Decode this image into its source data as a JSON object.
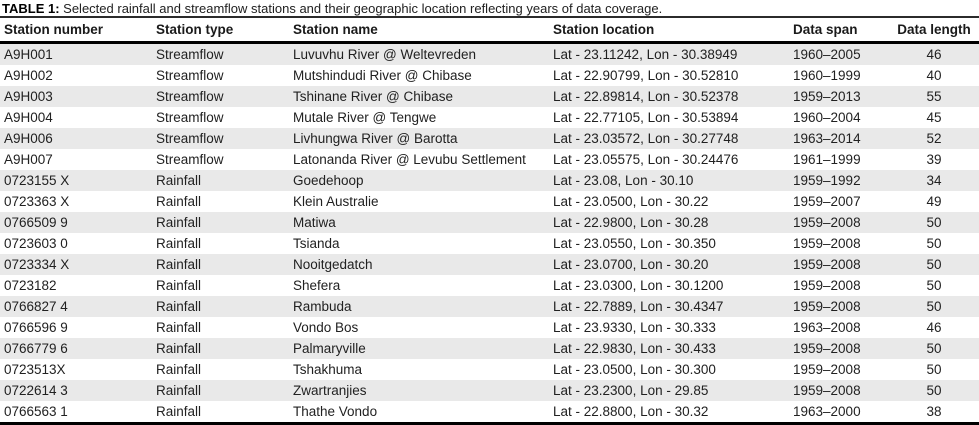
{
  "caption": {
    "label": "TABLE 1:",
    "text": " Selected rainfall and streamflow stations and their geographic location reflecting years of data coverage."
  },
  "colors": {
    "stripe": "#e9e9e9",
    "text": "#212121",
    "rule": "#000000"
  },
  "table": {
    "columns": [
      {
        "key": "station-number",
        "label": "Station number"
      },
      {
        "key": "station-type",
        "label": "Station type"
      },
      {
        "key": "station-name",
        "label": "Station name"
      },
      {
        "key": "station-location",
        "label": "Station location"
      },
      {
        "key": "data-span",
        "label": "Data span"
      },
      {
        "key": "data-length",
        "label": "Data length"
      }
    ],
    "rows": [
      [
        "A9H001",
        "Streamflow",
        "Luvuvhu River @ Weltevreden",
        "Lat - 23.11242, Lon - 30.38949",
        "1960–2005",
        "46"
      ],
      [
        "A9H002",
        "Streamflow",
        "Mutshindudi River @ Chibase",
        "Lat - 22.90799, Lon - 30.52810",
        "1960–1999",
        "40"
      ],
      [
        "A9H003",
        "Streamflow",
        "Tshinane River @ Chibase",
        "Lat - 22.89814, Lon - 30.52378",
        "1959–2013",
        "55"
      ],
      [
        "A9H004",
        "Streamflow",
        "Mutale River @ Tengwe",
        "Lat - 22.77105, Lon - 30.53894",
        "1960–2004",
        "45"
      ],
      [
        "A9H006",
        "Streamflow",
        "Livhungwa River @ Barotta",
        "Lat - 23.03572, Lon - 30.27748",
        "1963–2014",
        "52"
      ],
      [
        "A9H007",
        "Streamflow",
        "Latonanda River @ Levubu Settlement",
        "Lat - 23.05575, Lon - 30.24476",
        "1961–1999",
        "39"
      ],
      [
        "0723155 X",
        "Rainfall",
        "Goedehoop",
        "Lat - 23.08, Lon - 30.10",
        "1959–1992",
        "34"
      ],
      [
        "0723363 X",
        "Rainfall",
        "Klein Australie",
        "Lat - 23.0500, Lon - 30.22",
        "1959–2007",
        "49"
      ],
      [
        "0766509 9",
        "Rainfall",
        "Matiwa",
        "Lat - 22.9800, Lon - 30.28",
        "1959–2008",
        "50"
      ],
      [
        "0723603 0",
        "Rainfall",
        "Tsianda",
        "Lat - 23.0550, Lon - 30.350",
        "1959–2008",
        "50"
      ],
      [
        "0723334 X",
        "Rainfall",
        "Nooitgedatch",
        "Lat - 23.0700, Lon - 30.20",
        "1959–2008",
        "50"
      ],
      [
        "0723182",
        "Rainfall",
        "Shefera",
        "Lat - 23.0300, Lon - 30.1200",
        "1959–2008",
        "50"
      ],
      [
        "0766827 4",
        "Rainfall",
        "Rambuda",
        "Lat - 22.7889, Lon - 30.4347",
        "1959–2008",
        "50"
      ],
      [
        "0766596 9",
        "Rainfall",
        "Vondo Bos",
        "Lat - 23.9330, Lon - 30.333",
        "1963–2008",
        "46"
      ],
      [
        "0766779 6",
        "Rainfall",
        "Palmaryville",
        "Lat - 22.9830, Lon - 30.433",
        "1959–2008",
        "50"
      ],
      [
        "0723513X",
        "Rainfall",
        "Tshakhuma",
        "Lat - 23.0500, Lon - 30.300",
        "1959–2008",
        "50"
      ],
      [
        "0722614 3",
        "Rainfall",
        "Zwartranjies",
        "Lat - 23.2300, Lon - 29.85",
        "1959–2008",
        "50"
      ],
      [
        "0766563 1",
        "Rainfall",
        "Thathe Vondo",
        "Lat - 22.8800, Lon - 30.32",
        "1963–2000",
        "38"
      ]
    ]
  }
}
